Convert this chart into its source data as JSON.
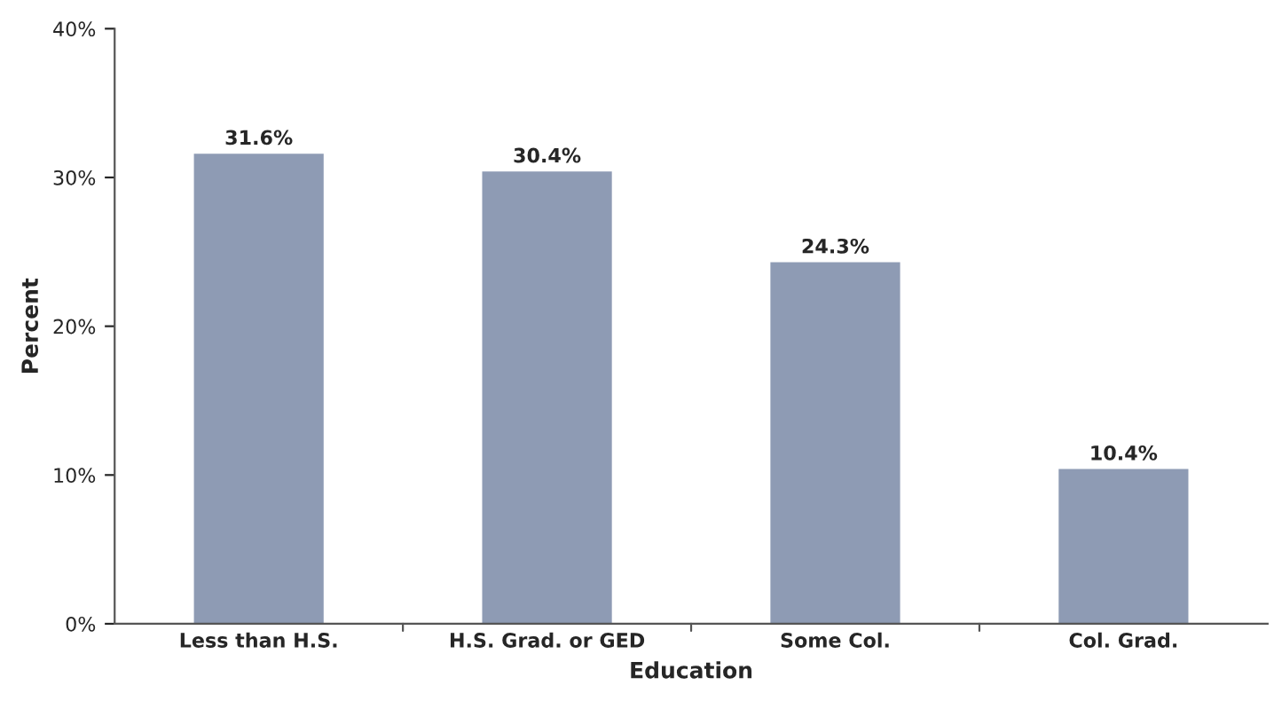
{
  "chart_data": {
    "type": "bar",
    "xlabel": "Education",
    "ylabel": "Percent",
    "categories": [
      "Less than H.S.",
      "H.S. Grad. or GED",
      "Some Col.",
      "Col. Grad."
    ],
    "values": [
      31.6,
      30.4,
      24.3,
      10.4
    ],
    "value_labels": [
      "31.6%",
      "30.4%",
      "24.3%",
      "10.4%"
    ],
    "color": "#8e9bb4",
    "ylim": [
      0,
      40
    ],
    "yticks": [
      {
        "value": 0,
        "label": "0%"
      },
      {
        "value": 10,
        "label": "10%"
      },
      {
        "value": 20,
        "label": "20%"
      },
      {
        "value": 30,
        "label": "30%"
      },
      {
        "value": 40,
        "label": "40%"
      }
    ],
    "grid": false
  }
}
